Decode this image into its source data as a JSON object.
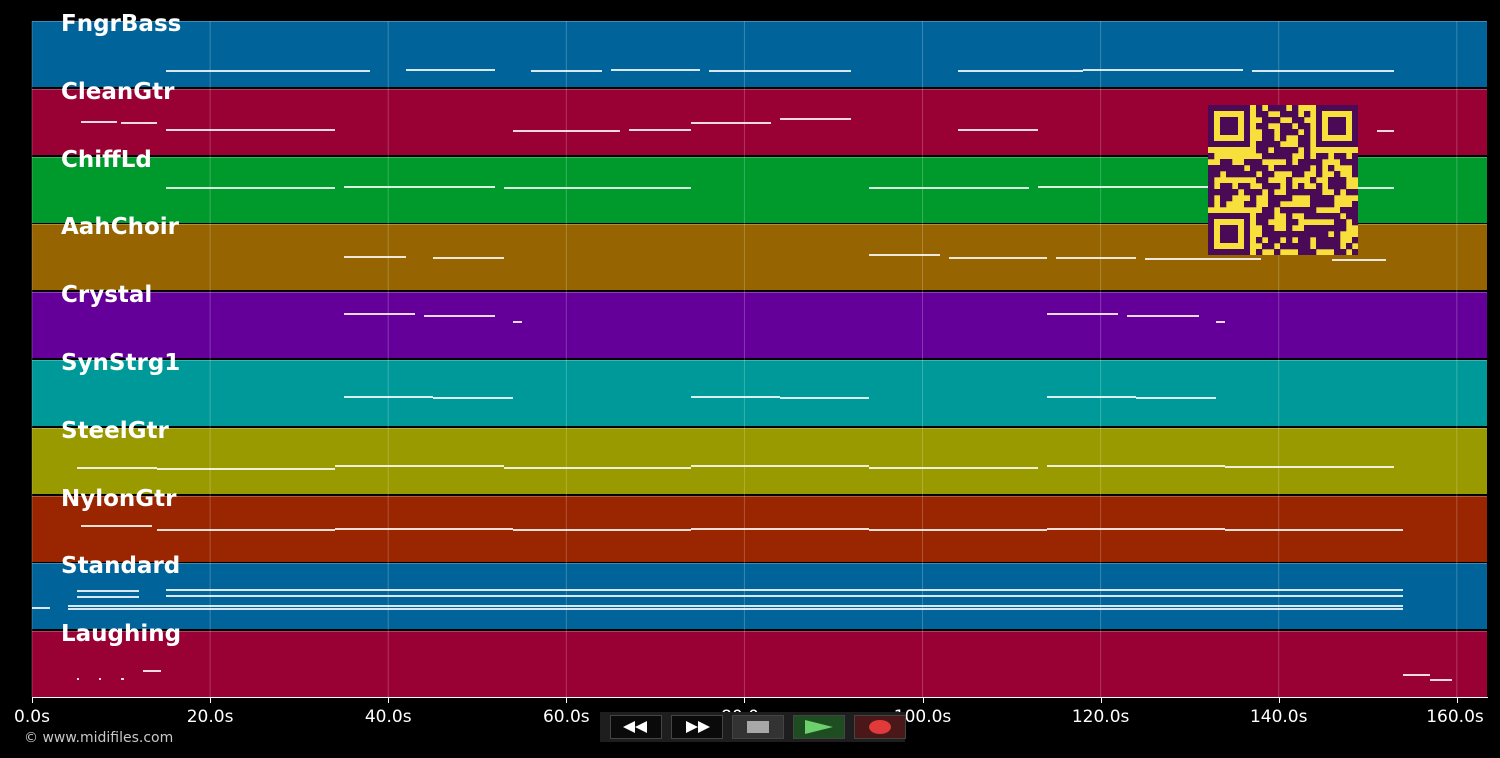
{
  "colors": {
    "background": "#000000",
    "note": "#ffffff",
    "qr_dark": "#4a0a55",
    "qr_light": "#f7e03b"
  },
  "tracks": [
    {
      "name": "FngrBass",
      "color": "#00649a",
      "notes": [
        [
          15,
          38,
          70
        ],
        [
          42,
          52,
          69
        ],
        [
          56,
          64,
          70
        ],
        [
          65,
          75,
          69
        ],
        [
          76,
          92,
          70
        ],
        [
          104,
          118,
          70
        ],
        [
          118,
          136,
          69
        ],
        [
          137,
          153,
          70
        ]
      ]
    },
    {
      "name": "CleanGtr",
      "color": "#990033",
      "notes": [
        [
          5.5,
          9.5,
          121
        ],
        [
          10,
          14,
          122
        ],
        [
          15,
          34,
          129
        ],
        [
          54,
          66,
          130
        ],
        [
          67,
          74,
          129
        ],
        [
          74,
          83,
          122
        ],
        [
          84,
          92,
          118
        ],
        [
          104,
          113,
          129
        ],
        [
          151,
          153,
          130
        ]
      ]
    },
    {
      "name": "ChiffLd",
      "color": "#009a2c",
      "notes": [
        [
          15,
          34,
          187
        ],
        [
          35,
          52,
          186
        ],
        [
          53,
          74,
          187
        ],
        [
          94,
          112,
          187
        ],
        [
          113,
          134,
          186
        ],
        [
          135,
          153,
          187
        ]
      ]
    },
    {
      "name": "AahChoir",
      "color": "#966400",
      "notes": [
        [
          35,
          42,
          256
        ],
        [
          45,
          53,
          257
        ],
        [
          94,
          102,
          254
        ],
        [
          103,
          114,
          257
        ],
        [
          115,
          124,
          257
        ],
        [
          125,
          138,
          258
        ],
        [
          146,
          152,
          259
        ]
      ]
    },
    {
      "name": "Crystal",
      "color": "#640099",
      "notes": [
        [
          35,
          43,
          313
        ],
        [
          44,
          52,
          315
        ],
        [
          54,
          55,
          321
        ],
        [
          114,
          122,
          313
        ],
        [
          123,
          131,
          315
        ],
        [
          133,
          134,
          321
        ]
      ]
    },
    {
      "name": "SynStrg1",
      "color": "#009999",
      "notes": [
        [
          35,
          45,
          396
        ],
        [
          45,
          54,
          397
        ],
        [
          74,
          84,
          396
        ],
        [
          84,
          94,
          397
        ],
        [
          114,
          124,
          396
        ],
        [
          124,
          133,
          397
        ]
      ]
    },
    {
      "name": "SteelGtr",
      "color": "#999900",
      "notes": [
        [
          5,
          14,
          467
        ],
        [
          14,
          34,
          468
        ],
        [
          34,
          53,
          465
        ],
        [
          53,
          74,
          467
        ],
        [
          74,
          94,
          465
        ],
        [
          94,
          113,
          467
        ],
        [
          114,
          134,
          465
        ],
        [
          134,
          153,
          466
        ]
      ]
    },
    {
      "name": "NylonGtr",
      "color": "#992600",
      "notes": [
        [
          5.5,
          13.5,
          525
        ],
        [
          14,
          34,
          529
        ],
        [
          34,
          54,
          528
        ],
        [
          54,
          74,
          529
        ],
        [
          74,
          94,
          528
        ],
        [
          94,
          114,
          529
        ],
        [
          114,
          134,
          528
        ],
        [
          134,
          154,
          529
        ]
      ]
    },
    {
      "name": "Standard",
      "color": "#00649a",
      "notes": [
        [
          5,
          12,
          590
        ],
        [
          15,
          154,
          589
        ],
        [
          5,
          12,
          596
        ],
        [
          15,
          154,
          595
        ],
        [
          0,
          2,
          607
        ],
        [
          4,
          154,
          605
        ],
        [
          4,
          154,
          608
        ]
      ]
    },
    {
      "name": "Laughing",
      "color": "#990033",
      "notes": [
        [
          5,
          5.3,
          678
        ],
        [
          7.5,
          7.8,
          678
        ],
        [
          10,
          10.3,
          678
        ],
        [
          12.5,
          14.5,
          670
        ],
        [
          154,
          157,
          674
        ],
        [
          157,
          159.5,
          679
        ]
      ]
    }
  ],
  "timeline": {
    "ticks": [
      "0.0s",
      "20.0s",
      "40.0s",
      "60.0s",
      "80.0s",
      "100.0s",
      "120.0s",
      "140.0s",
      "160.0s"
    ],
    "tick_values": [
      0,
      20,
      40,
      60,
      80,
      100,
      120,
      140,
      160
    ],
    "start_seconds": 0,
    "end_seconds": 163.5
  },
  "copyright": "© www.midifiles.com",
  "transport": {
    "rewind_icon": "rewind-icon",
    "fast_forward_icon": "fast-forward-icon",
    "stop_icon": "stop-icon",
    "play_icon": "play-icon",
    "record_icon": "record-icon"
  }
}
